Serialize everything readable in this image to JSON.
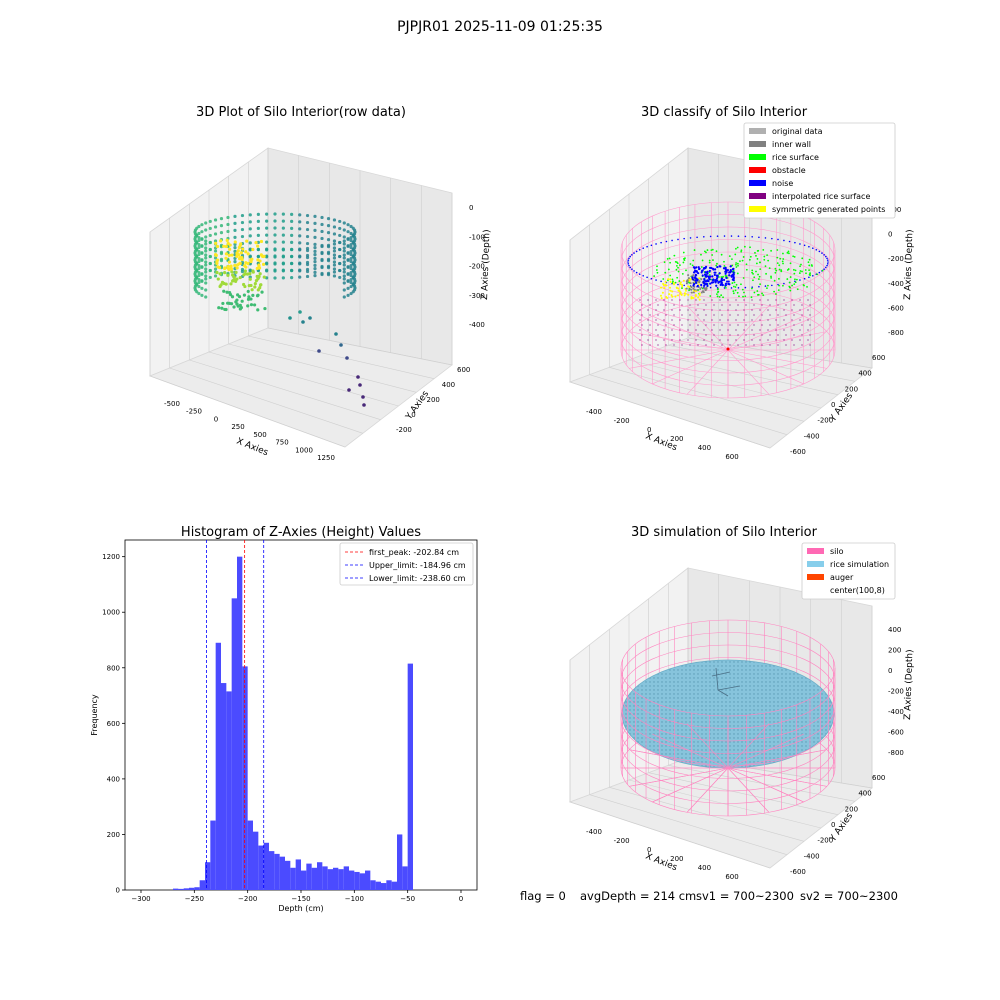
{
  "figure": {
    "suptitle": "PJPJR01 2025-11-09 01:25:35",
    "footer": {
      "flag": "flag = 0",
      "avg_depth": "avgDepth = 214 cm",
      "sv1": "sv1 = 700~2300",
      "sv2": "sv2 = 700~2300"
    }
  },
  "chart_data": [
    {
      "type": "scatter",
      "projection": "3d",
      "title": "3D Plot of Silo Interior(row data)",
      "xlabel": "X Axies",
      "ylabel": "Y Axies",
      "zlabel": "Z Axies (Depth)",
      "x_ticks": [
        "-500",
        "-250",
        "0",
        "250",
        "500",
        "750",
        "1000",
        "1250"
      ],
      "y_ticks": [
        "-200",
        "0",
        "200",
        "400",
        "600"
      ],
      "z_ticks": [
        "0",
        "-100",
        "-200",
        "-300",
        "-400"
      ],
      "colormap": "viridis",
      "grid": true
    },
    {
      "type": "scatter",
      "projection": "3d",
      "title": "3D classify of Silo Interior",
      "xlabel": "X Axies",
      "ylabel": "Y Axies",
      "zlabel": "Z Axies (Depth)",
      "x_ticks": [
        "-400",
        "-200",
        "0",
        "200",
        "400",
        "600"
      ],
      "y_ticks": [
        "-600",
        "-400",
        "-200",
        "0",
        "200",
        "400",
        "600"
      ],
      "z_ticks": [
        "200",
        "0",
        "-200",
        "-400",
        "-600",
        "-800"
      ],
      "legend_position": "top-right",
      "legend": [
        {
          "label": "original data",
          "color": "#b0b0b0"
        },
        {
          "label": "inner wall",
          "color": "#808080"
        },
        {
          "label": "rice surface",
          "color": "#00ff00"
        },
        {
          "label": "obstacle",
          "color": "#ff0000"
        },
        {
          "label": "noise",
          "color": "#0000ff"
        },
        {
          "label": "interpolated rice surface",
          "color": "#800080"
        },
        {
          "label": "symmetric generated points",
          "color": "#ffff00"
        }
      ],
      "grid": true
    },
    {
      "type": "bar",
      "title": "Histogram of Z-Axies (Height) Values",
      "xlabel": "Depth (cm)",
      "ylabel": "Frequency",
      "xlim": [
        -315,
        15
      ],
      "ylim": [
        0,
        1260
      ],
      "x_ticks": [
        -300,
        -250,
        -200,
        -150,
        -100,
        -50,
        0
      ],
      "y_ticks": [
        0,
        200,
        400,
        600,
        800,
        1000,
        1200
      ],
      "bar_color": "#4b4bff",
      "bin_width": 5,
      "bin_starts": [
        -270,
        -265,
        -260,
        -255,
        -250,
        -245,
        -240,
        -235,
        -230,
        -225,
        -220,
        -215,
        -210,
        -205,
        -200,
        -195,
        -190,
        -185,
        -180,
        -175,
        -170,
        -165,
        -160,
        -155,
        -150,
        -145,
        -140,
        -135,
        -130,
        -125,
        -120,
        -115,
        -110,
        -105,
        -100,
        -95,
        -90,
        -85,
        -80,
        -75,
        -70,
        -65,
        -60,
        -55,
        -50,
        -45,
        -40,
        -35,
        -30,
        -25,
        -20,
        -15,
        -10,
        -5
      ],
      "values": [
        5,
        4,
        6,
        8,
        10,
        35,
        100,
        250,
        890,
        745,
        715,
        1050,
        1200,
        805,
        250,
        210,
        160,
        170,
        140,
        130,
        120,
        105,
        80,
        110,
        70,
        95,
        80,
        100,
        85,
        75,
        80,
        75,
        85,
        70,
        65,
        60,
        70,
        35,
        30,
        25,
        35,
        30,
        200,
        85,
        815,
        0,
        0,
        0,
        0,
        0,
        0,
        0,
        0,
        0
      ],
      "vlines": [
        {
          "label": "first_peak: -202.84 cm",
          "x": -202.84,
          "color": "#ff0000"
        },
        {
          "label": "Upper_limit: -184.96 cm",
          "x": -184.96,
          "color": "#0000ff"
        },
        {
          "label": "Lower_limit: -238.60 cm",
          "x": -238.6,
          "color": "#0000ff"
        }
      ],
      "legend_position": "top-right",
      "grid": false
    },
    {
      "type": "scatter",
      "projection": "3d",
      "title": "3D simulation of Silo Interior",
      "xlabel": "X Axies",
      "ylabel": "Y Axies",
      "zlabel": "Z Axies (Depth)",
      "x_ticks": [
        "-400",
        "-200",
        "0",
        "200",
        "400",
        "600"
      ],
      "y_ticks": [
        "-600",
        "-400",
        "-200",
        "0",
        "200",
        "400",
        "600"
      ],
      "z_ticks": [
        "400",
        "200",
        "0",
        "-200",
        "-400",
        "-600",
        "-800"
      ],
      "legend_position": "top-right",
      "legend": [
        {
          "label": "silo",
          "color": "#ff69b4"
        },
        {
          "label": "rice simulation",
          "color": "#87ceeb"
        },
        {
          "label": "auger",
          "color": "#ff4500"
        },
        {
          "label": "center(100,8)",
          "color": "#ffffff"
        }
      ],
      "grid": true
    }
  ]
}
